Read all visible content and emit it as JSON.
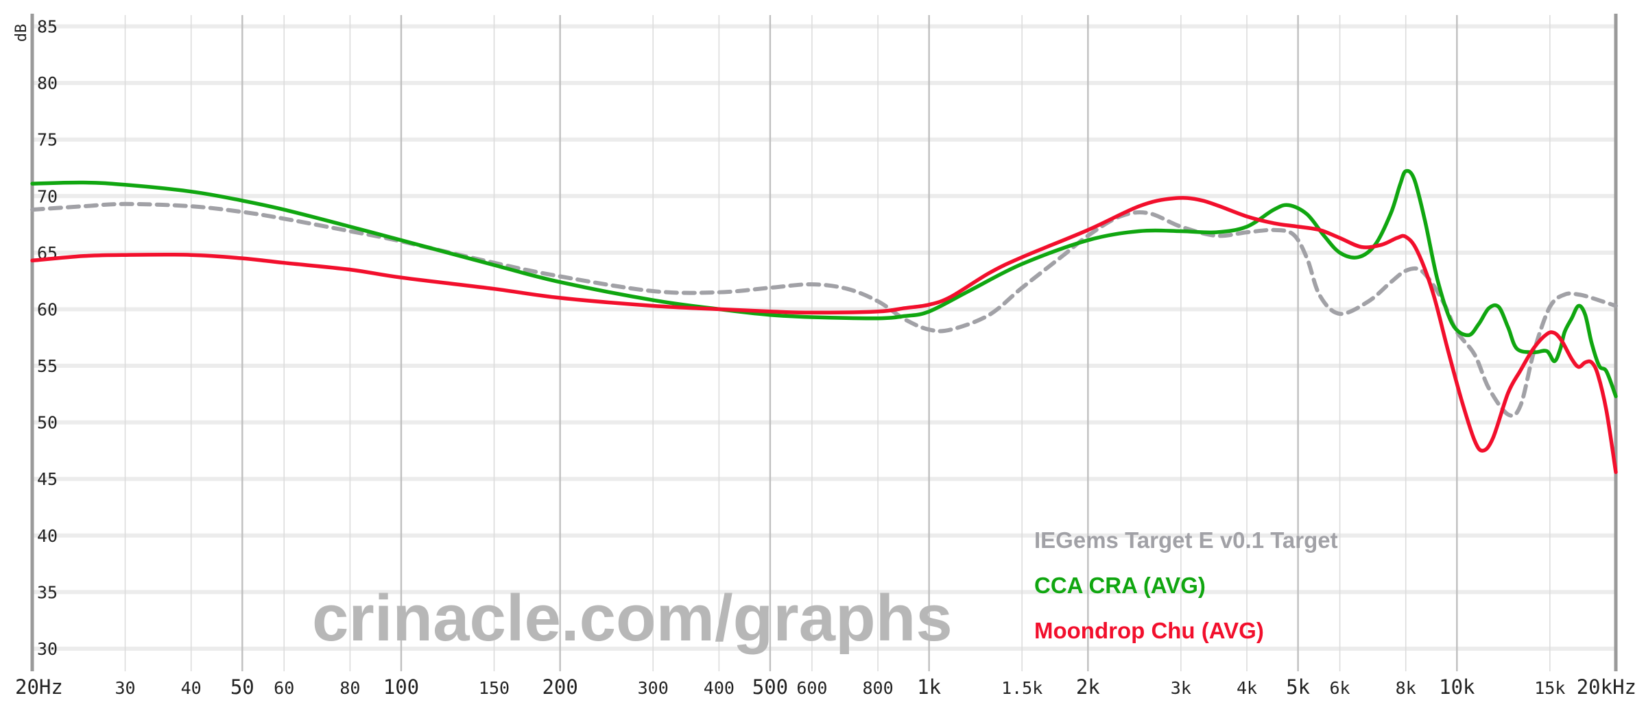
{
  "chart_data": {
    "type": "line",
    "ylabel": "dB",
    "ylim": [
      28,
      86
    ],
    "xlim": [
      20,
      20000
    ],
    "xscale": "log",
    "yticks": [
      "85",
      "80",
      "75",
      "70",
      "65",
      "60",
      "55",
      "50",
      "45",
      "40",
      "35",
      "30"
    ],
    "xticks": [
      {
        "label": "20Hz",
        "value": 20,
        "major": true
      },
      {
        "label": "30",
        "value": 30,
        "major": false
      },
      {
        "label": "40",
        "value": 40,
        "major": false
      },
      {
        "label": "50",
        "value": 50,
        "major": true
      },
      {
        "label": "60",
        "value": 60,
        "major": false
      },
      {
        "label": "80",
        "value": 80,
        "major": false
      },
      {
        "label": "100",
        "value": 100,
        "major": true
      },
      {
        "label": "150",
        "value": 150,
        "major": false
      },
      {
        "label": "200",
        "value": 200,
        "major": true
      },
      {
        "label": "300",
        "value": 300,
        "major": false
      },
      {
        "label": "400",
        "value": 400,
        "major": false
      },
      {
        "label": "500",
        "value": 500,
        "major": true
      },
      {
        "label": "600",
        "value": 600,
        "major": false
      },
      {
        "label": "800",
        "value": 800,
        "major": false
      },
      {
        "label": "1k",
        "value": 1000,
        "major": true
      },
      {
        "label": "1.5k",
        "value": 1500,
        "major": false
      },
      {
        "label": "2k",
        "value": 2000,
        "major": true
      },
      {
        "label": "3k",
        "value": 3000,
        "major": false
      },
      {
        "label": "4k",
        "value": 4000,
        "major": false
      },
      {
        "label": "5k",
        "value": 5000,
        "major": true
      },
      {
        "label": "6k",
        "value": 6000,
        "major": false
      },
      {
        "label": "8k",
        "value": 8000,
        "major": false
      },
      {
        "label": "10k",
        "value": 10000,
        "major": true
      },
      {
        "label": "15k",
        "value": 15000,
        "major": false
      },
      {
        "label": "20kHz",
        "value": 20000,
        "major": true
      }
    ],
    "series": [
      {
        "name": "IEGems Target E v0.1 Target",
        "color": "#a1a1a6",
        "style": "dashed",
        "points": [
          [
            20,
            68.8
          ],
          [
            25,
            69.1
          ],
          [
            30,
            69.3
          ],
          [
            40,
            69.1
          ],
          [
            50,
            68.6
          ],
          [
            60,
            68.0
          ],
          [
            80,
            66.9
          ],
          [
            100,
            66.0
          ],
          [
            150,
            64.1
          ],
          [
            200,
            62.9
          ],
          [
            300,
            61.6
          ],
          [
            400,
            61.5
          ],
          [
            500,
            61.9
          ],
          [
            600,
            62.2
          ],
          [
            700,
            61.8
          ],
          [
            800,
            60.7
          ],
          [
            900,
            59.1
          ],
          [
            1000,
            58.2
          ],
          [
            1100,
            58.2
          ],
          [
            1300,
            59.5
          ],
          [
            1500,
            61.9
          ],
          [
            1800,
            64.8
          ],
          [
            2000,
            66.5
          ],
          [
            2300,
            68.2
          ],
          [
            2600,
            68.5
          ],
          [
            3000,
            67.3
          ],
          [
            3500,
            66.5
          ],
          [
            4000,
            66.8
          ],
          [
            4500,
            67.0
          ],
          [
            4900,
            66.6
          ],
          [
            5200,
            64.5
          ],
          [
            5500,
            61.2
          ],
          [
            6000,
            59.6
          ],
          [
            6800,
            60.7
          ],
          [
            7500,
            62.4
          ],
          [
            8000,
            63.4
          ],
          [
            8500,
            63.5
          ],
          [
            9000,
            62.2
          ],
          [
            9500,
            60.3
          ],
          [
            10000,
            58.0
          ],
          [
            10800,
            56.0
          ],
          [
            11500,
            53.0
          ],
          [
            12500,
            50.7
          ],
          [
            13200,
            51.5
          ],
          [
            14000,
            56.3
          ],
          [
            15000,
            60.2
          ],
          [
            16000,
            61.3
          ],
          [
            17000,
            61.3
          ],
          [
            18000,
            61.0
          ],
          [
            20000,
            60.3
          ]
        ]
      },
      {
        "name": "CCA CRA (AVG)",
        "color": "#10a610",
        "style": "solid",
        "points": [
          [
            20,
            71.1
          ],
          [
            25,
            71.2
          ],
          [
            30,
            71.0
          ],
          [
            40,
            70.4
          ],
          [
            50,
            69.6
          ],
          [
            60,
            68.8
          ],
          [
            80,
            67.3
          ],
          [
            100,
            66.1
          ],
          [
            150,
            63.9
          ],
          [
            200,
            62.4
          ],
          [
            300,
            60.8
          ],
          [
            400,
            60.0
          ],
          [
            500,
            59.5
          ],
          [
            600,
            59.3
          ],
          [
            800,
            59.2
          ],
          [
            900,
            59.4
          ],
          [
            1000,
            59.8
          ],
          [
            1200,
            61.7
          ],
          [
            1500,
            64.0
          ],
          [
            2000,
            66.1
          ],
          [
            2500,
            66.9
          ],
          [
            3000,
            66.9
          ],
          [
            3500,
            66.8
          ],
          [
            4000,
            67.3
          ],
          [
            4500,
            68.8
          ],
          [
            4800,
            69.2
          ],
          [
            5200,
            68.4
          ],
          [
            5600,
            66.5
          ],
          [
            6000,
            65.0
          ],
          [
            6500,
            64.6
          ],
          [
            7000,
            65.7
          ],
          [
            7500,
            68.5
          ],
          [
            7800,
            71.0
          ],
          [
            8000,
            72.2
          ],
          [
            8300,
            71.5
          ],
          [
            8700,
            67.8
          ],
          [
            9200,
            62.5
          ],
          [
            9800,
            58.7
          ],
          [
            10500,
            57.7
          ],
          [
            11000,
            58.7
          ],
          [
            11500,
            60.1
          ],
          [
            12000,
            60.2
          ],
          [
            12500,
            58.4
          ],
          [
            13000,
            56.5
          ],
          [
            14000,
            56.2
          ],
          [
            14800,
            56.3
          ],
          [
            15300,
            55.4
          ],
          [
            15700,
            56.5
          ],
          [
            16000,
            58.0
          ],
          [
            16500,
            59.2
          ],
          [
            17000,
            60.3
          ],
          [
            17500,
            59.5
          ],
          [
            18000,
            57.0
          ],
          [
            18600,
            55.0
          ],
          [
            19200,
            54.5
          ],
          [
            20000,
            52.3
          ]
        ]
      },
      {
        "name": "Moondrop Chu (AVG)",
        "color": "#f20f2c",
        "style": "solid",
        "points": [
          [
            20,
            64.3
          ],
          [
            25,
            64.7
          ],
          [
            30,
            64.8
          ],
          [
            40,
            64.8
          ],
          [
            50,
            64.5
          ],
          [
            60,
            64.1
          ],
          [
            80,
            63.5
          ],
          [
            100,
            62.8
          ],
          [
            150,
            61.8
          ],
          [
            200,
            61.0
          ],
          [
            300,
            60.3
          ],
          [
            400,
            60.0
          ],
          [
            500,
            59.8
          ],
          [
            600,
            59.7
          ],
          [
            800,
            59.8
          ],
          [
            900,
            60.1
          ],
          [
            1000,
            60.4
          ],
          [
            1100,
            61.1
          ],
          [
            1300,
            63.2
          ],
          [
            1500,
            64.6
          ],
          [
            2000,
            67.0
          ],
          [
            2500,
            69.1
          ],
          [
            2900,
            69.8
          ],
          [
            3300,
            69.6
          ],
          [
            4000,
            68.2
          ],
          [
            4500,
            67.6
          ],
          [
            5000,
            67.3
          ],
          [
            5500,
            67.0
          ],
          [
            6000,
            66.3
          ],
          [
            6600,
            65.5
          ],
          [
            7200,
            65.7
          ],
          [
            7700,
            66.3
          ],
          [
            8000,
            66.4
          ],
          [
            8400,
            65.2
          ],
          [
            9000,
            61.5
          ],
          [
            9600,
            56.5
          ],
          [
            10200,
            52.0
          ],
          [
            10800,
            48.4
          ],
          [
            11200,
            47.5
          ],
          [
            11700,
            48.6
          ],
          [
            12500,
            52.6
          ],
          [
            13200,
            54.6
          ],
          [
            14000,
            56.6
          ],
          [
            14800,
            57.8
          ],
          [
            15300,
            57.9
          ],
          [
            15800,
            57.2
          ],
          [
            16500,
            55.6
          ],
          [
            17000,
            54.9
          ],
          [
            17500,
            55.3
          ],
          [
            18000,
            55.3
          ],
          [
            18500,
            54.2
          ],
          [
            19200,
            51.0
          ],
          [
            20000,
            45.6
          ]
        ]
      }
    ],
    "legend_placement": "bottom-right",
    "grid": true
  },
  "watermark": "crinacle.com/graphs"
}
